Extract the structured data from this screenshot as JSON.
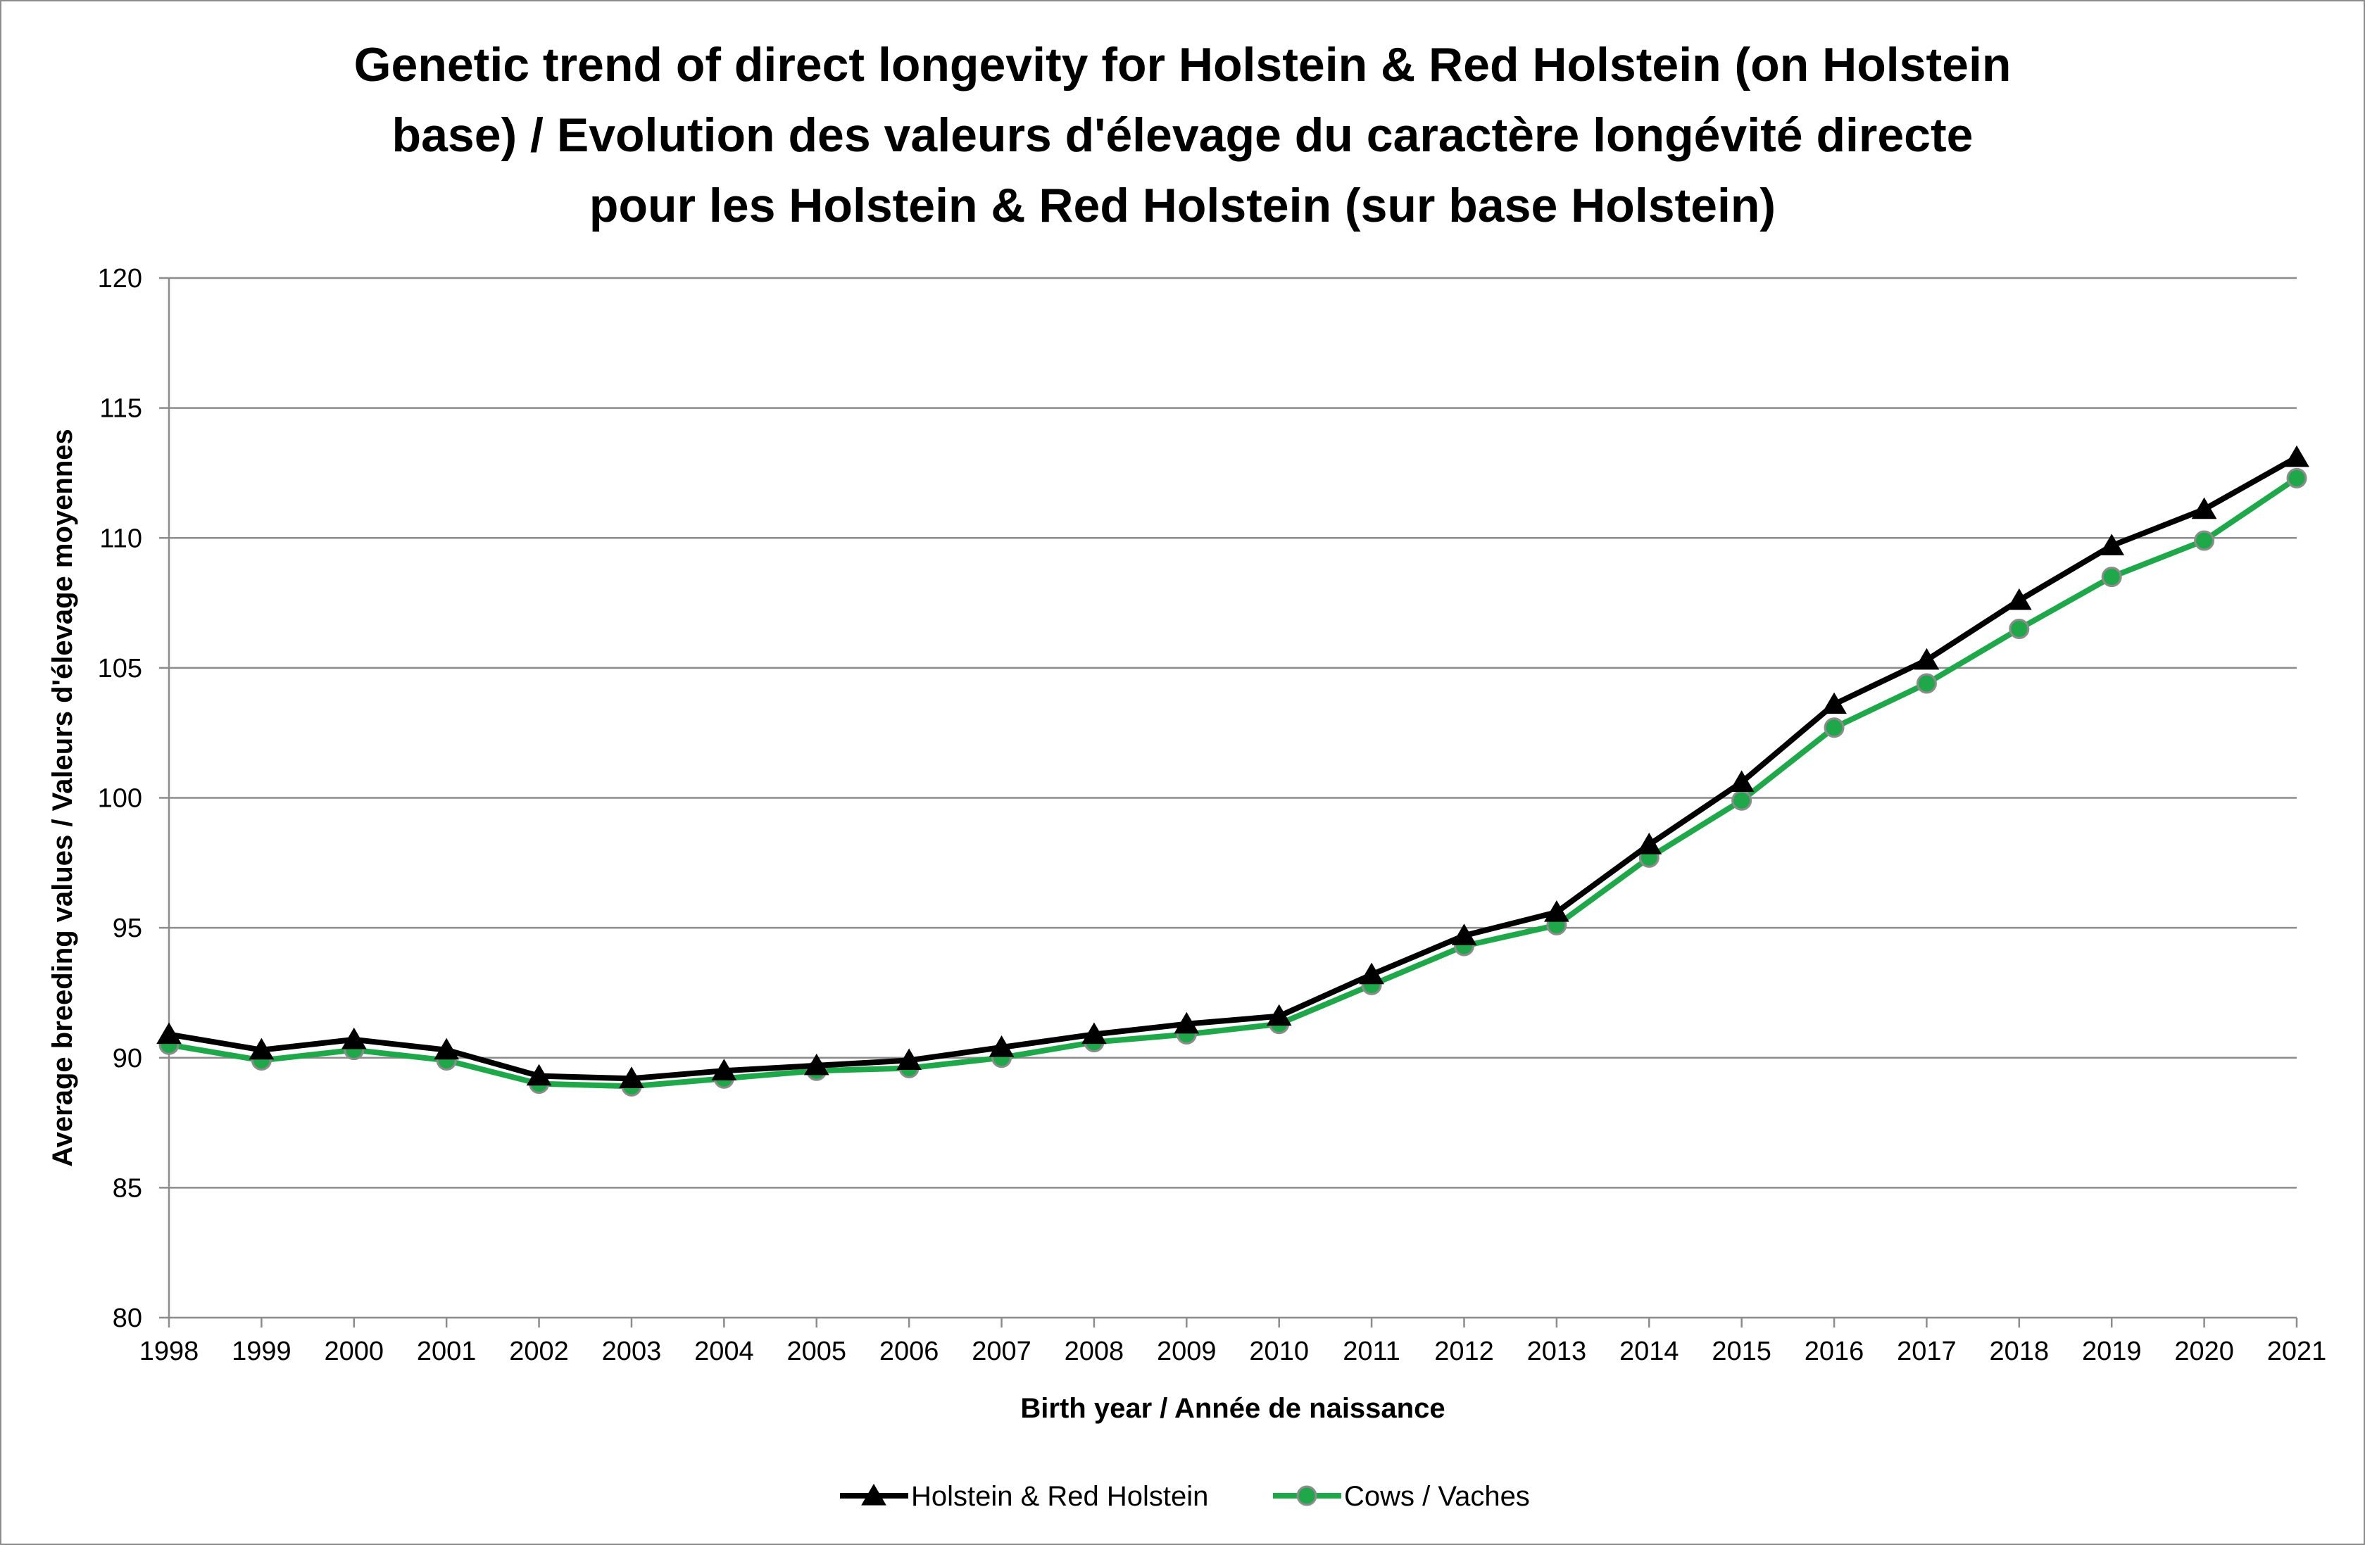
{
  "chart_data": {
    "type": "line",
    "title_lines": [
      "Genetic trend of direct longevity for Holstein & Red Holstein (on Holstein",
      "base) / Evolution des valeurs d'élevage du caractère longévité directe",
      "pour les Holstein & Red Holstein (sur base Holstein)"
    ],
    "xlabel": "Birth year / Année de naissance",
    "ylabel": "Average breeding values / Valeurs d'élevage moyennes",
    "x": [
      "1998",
      "1999",
      "2000",
      "2001",
      "2002",
      "2003",
      "2004",
      "2005",
      "2006",
      "2007",
      "2008",
      "2009",
      "2010",
      "2011",
      "2012",
      "2013",
      "2014",
      "2015",
      "2016",
      "2017",
      "2018",
      "2019",
      "2020",
      "2021"
    ],
    "ylim": [
      80,
      120
    ],
    "yticks": [
      80,
      85,
      90,
      95,
      100,
      105,
      110,
      115,
      120
    ],
    "grid": true,
    "legend_position": "bottom",
    "series": [
      {
        "name": "Holstein & Red Holstein",
        "color": "#000000",
        "marker": "triangle",
        "values": [
          90.9,
          90.3,
          90.7,
          90.3,
          89.3,
          89.2,
          89.5,
          89.7,
          89.9,
          90.4,
          90.9,
          91.3,
          91.6,
          93.2,
          94.7,
          95.6,
          98.2,
          100.6,
          103.6,
          105.3,
          107.6,
          109.7,
          111.1,
          113.1
        ]
      },
      {
        "name": "Cows / Vaches",
        "color": "#1fa84a",
        "marker": "circle",
        "values": [
          90.5,
          89.9,
          90.3,
          89.9,
          89.0,
          88.9,
          89.2,
          89.5,
          89.6,
          90.0,
          90.6,
          90.9,
          91.3,
          92.8,
          94.3,
          95.1,
          97.7,
          99.9,
          102.7,
          104.4,
          106.5,
          108.5,
          109.9,
          112.3
        ]
      }
    ]
  }
}
